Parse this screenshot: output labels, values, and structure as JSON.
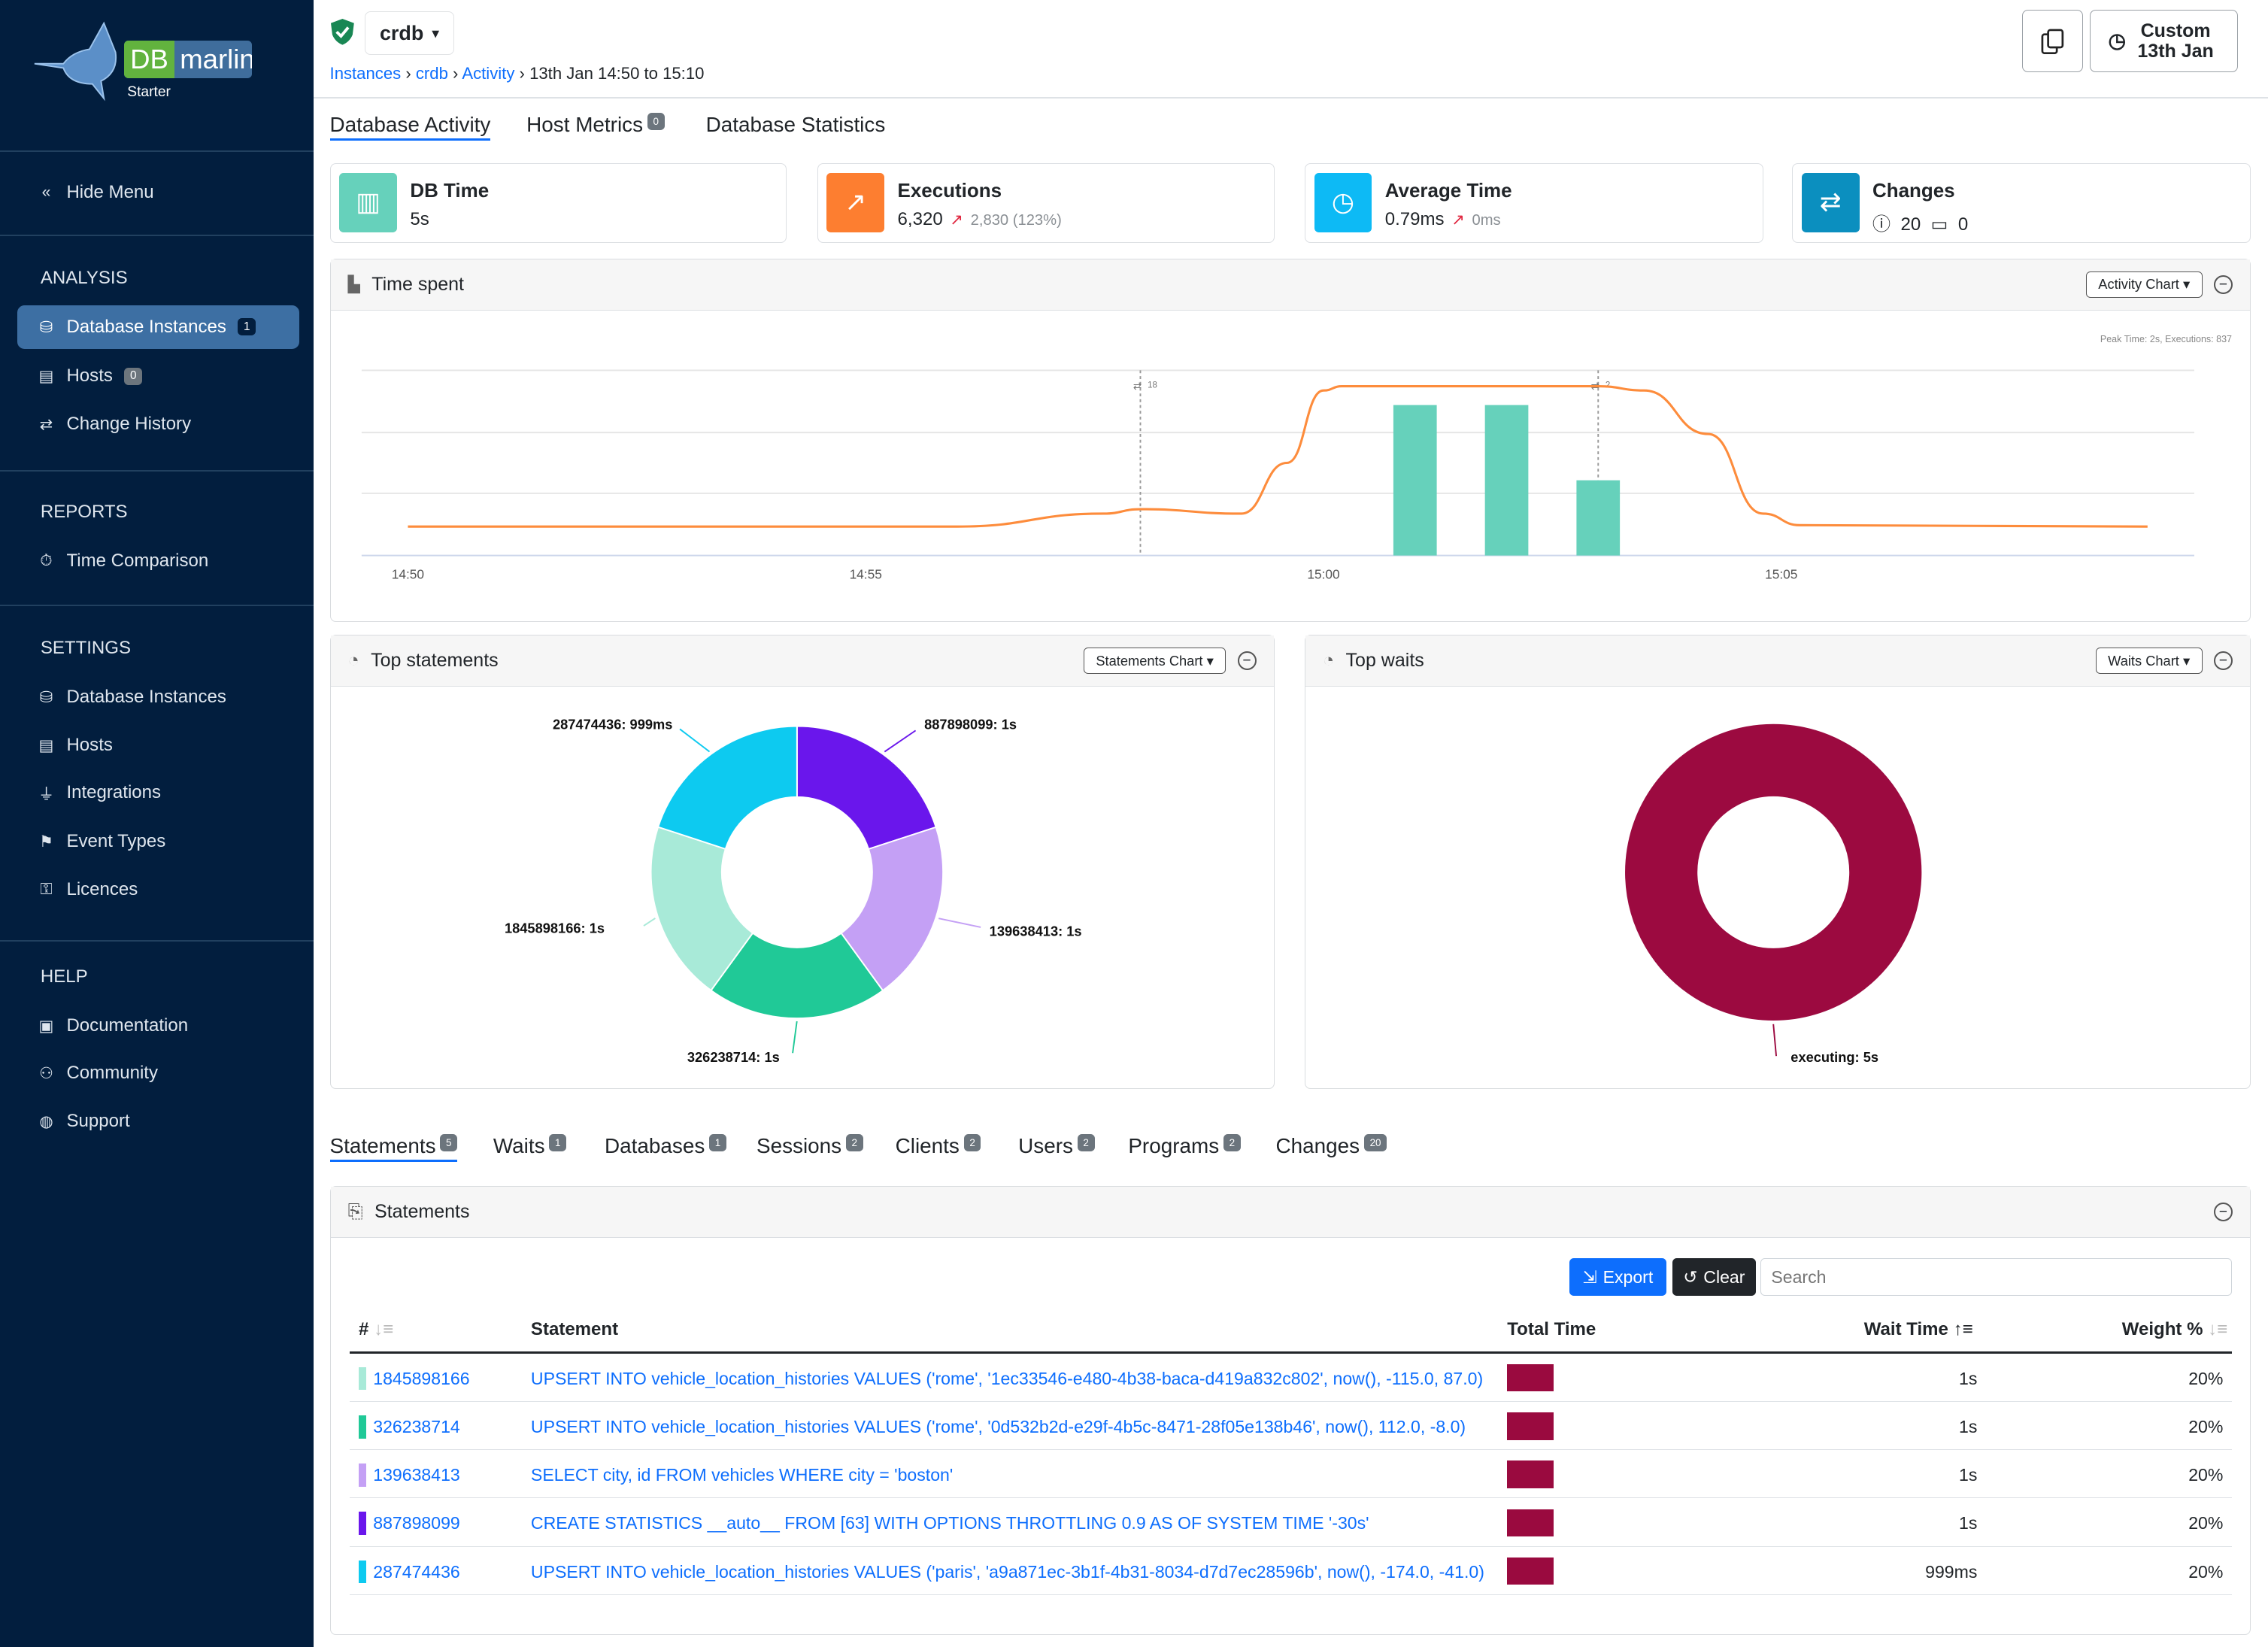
{
  "brand": {
    "logo_text_db": "DB",
    "logo_text_name": "marlin",
    "edition": "Starter"
  },
  "sidebar": {
    "hide_menu": "Hide Menu",
    "sections": [
      {
        "title": "ANALYSIS",
        "items": [
          {
            "label": "Database Instances",
            "icon": "database-icon",
            "badge": "1",
            "active": true
          },
          {
            "label": "Hosts",
            "icon": "server-icon",
            "badge": "0"
          },
          {
            "label": "Change History",
            "icon": "arrows-exchange-icon"
          }
        ]
      },
      {
        "title": "REPORTS",
        "items": [
          {
            "label": "Time Comparison",
            "icon": "stopwatch-icon"
          }
        ]
      },
      {
        "title": "SETTINGS",
        "items": [
          {
            "label": "Database Instances",
            "icon": "database-icon"
          },
          {
            "label": "Hosts",
            "icon": "server-icon"
          },
          {
            "label": "Integrations",
            "icon": "plug-icon"
          },
          {
            "label": "Event Types",
            "icon": "event-icon"
          },
          {
            "label": "Licences",
            "icon": "key-icon"
          }
        ]
      },
      {
        "title": "HELP",
        "items": [
          {
            "label": "Documentation",
            "icon": "book-icon"
          },
          {
            "label": "Community",
            "icon": "people-icon"
          },
          {
            "label": "Support",
            "icon": "globe-icon"
          }
        ]
      }
    ]
  },
  "header": {
    "instance": "crdb",
    "breadcrumb": [
      "Instances",
      "crdb",
      "Activity"
    ],
    "breadcrumb_current": "13th Jan 14:50 to 15:10",
    "time_button_line1": "Custom",
    "time_button_line2": "13th Jan"
  },
  "tabs": [
    {
      "label": "Database Activity",
      "active": true
    },
    {
      "label": "Host Metrics",
      "badge": "0"
    },
    {
      "label": "Database Statistics"
    }
  ],
  "cards": {
    "db_time": {
      "title": "DB Time",
      "value": "5s",
      "color": "#66d1bb"
    },
    "executions": {
      "title": "Executions",
      "value": "6,320",
      "delta": "2,830 (123%)",
      "color": "#fd7e30"
    },
    "avg_time": {
      "title": "Average Time",
      "value": "0.79ms",
      "delta": "0ms",
      "color": "#0dbaf5"
    },
    "changes": {
      "title": "Changes",
      "info_count": "20",
      "calendar_count": "0",
      "color": "#0b8fbf"
    }
  },
  "time_spent": {
    "title": "Time spent",
    "dropdown": "Activity Chart",
    "peak": "Peak Time: 2s, Executions: 837"
  },
  "chart_data": [
    {
      "type": "bar+line",
      "x_ticks": [
        "14:50",
        "14:55",
        "15:00",
        "15:05"
      ],
      "x_range": [
        "14:50",
        "15:10"
      ],
      "grid": true,
      "bars": {
        "color": "#66d1bb",
        "unit": "s",
        "x": [
          "15:01",
          "15:02",
          "15:03"
        ],
        "values": [
          2,
          2,
          1
        ]
      },
      "line": {
        "color": "#fd8c3c",
        "x": [
          "14:50",
          "14:56",
          "14:57.6",
          "14:58",
          "14:59.1",
          "14:59.6",
          "15:00",
          "15:00.2",
          "15:02.5",
          "15:03",
          "15:03.5",
          "15:04.2",
          "15:04.8",
          "15:05.2",
          "15:09"
        ],
        "values": [
          143,
          143,
          207,
          229,
          207,
          458,
          816,
          837,
          837,
          837,
          816,
          601,
          207,
          150,
          143
        ]
      },
      "annotations": [
        {
          "x": "14:58",
          "label": "18"
        },
        {
          "x": "15:03",
          "label": "2"
        }
      ]
    },
    {
      "type": "pie",
      "title": "Top statements",
      "dropdown": "Statements Chart",
      "labels": [
        "887898099: 1s",
        "139638413: 1s",
        "326238714: 1s",
        "1845898166: 1s",
        "287474436: 999ms"
      ],
      "values": [
        1,
        1,
        1,
        1,
        0.999
      ],
      "colors": [
        "#6a16ec",
        "#c4a0f5",
        "#20c997",
        "#a8ead8",
        "#0dcaf0"
      ]
    },
    {
      "type": "pie",
      "title": "Top waits",
      "dropdown": "Waits Chart",
      "labels": [
        "executing: 5s"
      ],
      "values": [
        5
      ],
      "colors": [
        "#9c0a40"
      ]
    }
  ],
  "bottom_tabs": [
    {
      "label": "Statements",
      "badge": "5",
      "active": true
    },
    {
      "label": "Waits",
      "badge": "1"
    },
    {
      "label": "Databases",
      "badge": "1"
    },
    {
      "label": "Sessions",
      "badge": "2"
    },
    {
      "label": "Clients",
      "badge": "2"
    },
    {
      "label": "Users",
      "badge": "2"
    },
    {
      "label": "Programs",
      "badge": "2"
    },
    {
      "label": "Changes",
      "badge": "20"
    }
  ],
  "statements": {
    "title": "Statements",
    "export": "Export",
    "clear": "Clear",
    "search_placeholder": "Search",
    "columns": {
      "num": "#",
      "statement": "Statement",
      "total_time": "Total Time",
      "wait_time": "Wait Time",
      "weight": "Weight %"
    },
    "rows": [
      {
        "id": "1845898166",
        "color": "#a8ead8",
        "statement": "UPSERT INTO vehicle_location_histories VALUES ('rome', '1ec33546-e480-4b38-baca-d419a832c802', now(), -115.0, 87.0)",
        "wait": "1s",
        "weight": "20%"
      },
      {
        "id": "326238714",
        "color": "#20c997",
        "statement": "UPSERT INTO vehicle_location_histories VALUES ('rome', '0d532b2d-e29f-4b5c-8471-28f05e138b46', now(), 112.0, -8.0)",
        "wait": "1s",
        "weight": "20%"
      },
      {
        "id": "139638413",
        "color": "#c4a0f5",
        "statement": "SELECT city, id FROM vehicles WHERE city = 'boston'",
        "wait": "1s",
        "weight": "20%"
      },
      {
        "id": "887898099",
        "color": "#6a16ec",
        "statement": "CREATE STATISTICS __auto__ FROM [63] WITH OPTIONS THROTTLING 0.9 AS OF SYSTEM TIME '-30s'",
        "wait": "1s",
        "weight": "20%"
      },
      {
        "id": "287474436",
        "color": "#0dcaf0",
        "statement": "UPSERT INTO vehicle_location_histories VALUES ('paris', 'a9a871ec-3b1f-4b31-8034-d7d7ec28596b', now(), -174.0, -41.0)",
        "wait": "999ms",
        "weight": "20%"
      }
    ]
  }
}
